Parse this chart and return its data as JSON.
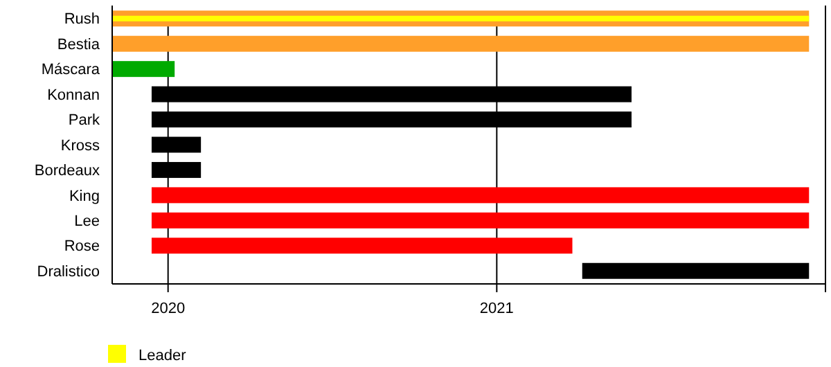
{
  "chart_data": {
    "type": "bar",
    "orientation": "horizontal",
    "categories": [
      "Rush",
      "Bestia",
      "Máscara",
      "Konnan",
      "Park",
      "Kross",
      "Bordeaux",
      "King",
      "Lee",
      "Rose",
      "Dralistico"
    ],
    "xlim": [
      2019.83,
      2022.0
    ],
    "xticks": [
      2020,
      2021
    ],
    "grid": "x",
    "legend": "bottom",
    "series": [
      {
        "color": "#ff9f2a",
        "values": [
          2.12,
          2.12,
          null,
          null,
          null,
          null,
          null,
          null,
          null,
          null,
          null
        ],
        "base": [
          2019.83,
          2019.83,
          null,
          null,
          null,
          null,
          null,
          null,
          null,
          null,
          null
        ]
      },
      {
        "name": "Leader",
        "color": "#ffff00",
        "values": [
          2.12,
          null,
          null,
          null,
          null,
          null,
          null,
          null,
          null,
          null,
          null
        ],
        "base": [
          2019.83,
          null,
          null,
          null,
          null,
          null,
          null,
          null,
          null,
          null,
          null
        ]
      },
      {
        "color": "#00aa00",
        "values": [
          null,
          null,
          0.19,
          null,
          null,
          null,
          null,
          null,
          null,
          null,
          null
        ],
        "base": [
          null,
          null,
          2019.83,
          null,
          null,
          null,
          null,
          null,
          null,
          null,
          null
        ]
      },
      {
        "color": "#ff0000",
        "values": [
          null,
          null,
          null,
          null,
          null,
          null,
          null,
          2.0,
          2.0,
          1.28,
          null
        ],
        "base": [
          null,
          null,
          null,
          null,
          null,
          null,
          null,
          2019.95,
          2019.95,
          2019.95,
          null
        ]
      },
      {
        "color": "#000000",
        "values": [
          null,
          null,
          null,
          1.46,
          1.46,
          0.15,
          0.15,
          null,
          null,
          null,
          0.69
        ],
        "base": [
          null,
          null,
          null,
          2019.95,
          2019.95,
          2019.95,
          2019.95,
          null,
          null,
          null,
          2021.26
        ]
      }
    ]
  }
}
